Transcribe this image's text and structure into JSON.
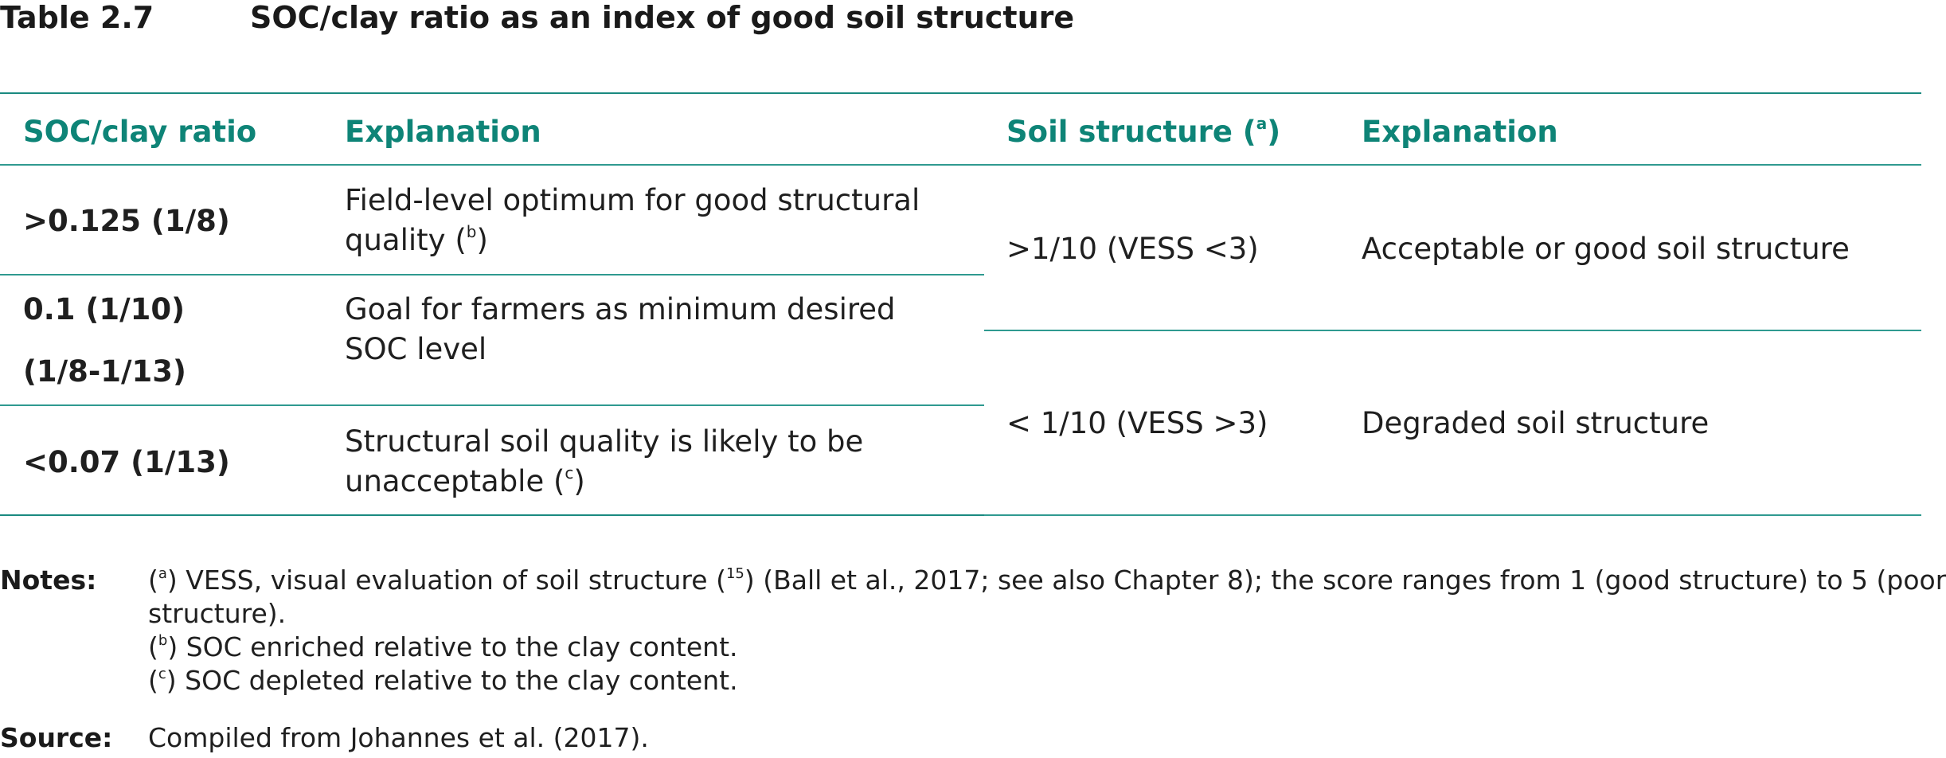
{
  "title": {
    "label": "Table 2.7",
    "text": "SOC/clay ratio as an index of good soil structure"
  },
  "headers": {
    "ratio": "SOC/clay ratio",
    "explanation_left": "Explanation",
    "structure": "Soil structure (",
    "structure_sup": "a",
    "structure_close": ")",
    "explanation_right": "Explanation"
  },
  "left_rows": [
    {
      "ratio": ">0.125 (1/8)",
      "explanation_line1": "Field-level optimum for good structural",
      "explanation_line2": "quality (",
      "sup": "b",
      "close": ")"
    },
    {
      "ratio_line1": "0.1 (1/10)",
      "ratio_line2": "(1/8-1/13)",
      "explanation_line1": "Goal for farmers as minimum desired",
      "explanation_line2": "SOC level"
    },
    {
      "ratio": "<0.07 (1/13)",
      "explanation_line1": "Structural soil quality is likely to be",
      "explanation_line2": "unacceptable (",
      "sup": "c",
      "close": ")"
    }
  ],
  "right_rows": [
    {
      "structure": ">1/10 (VESS <3)",
      "explanation": "Acceptable or good soil structure"
    },
    {
      "structure": "< 1/10 (VESS >3)",
      "explanation": "Degraded soil structure"
    }
  ],
  "notes": {
    "label": "Notes:",
    "a_open": "(",
    "a_sup": "a",
    "a_text1": ") VESS, visual evaluation of soil structure (",
    "a_ref": "15",
    "a_text2": ") (Ball et al., 2017; see also Chapter 8); the score ranges from 1 (good structure) to 5 (poor",
    "a_text3": "structure).",
    "b_open": "(",
    "b_sup": "b",
    "b_text": ") SOC enriched relative to the clay content.",
    "c_open": "(",
    "c_sup": "c",
    "c_text": ") SOC depleted relative to the clay content."
  },
  "source": {
    "label": "Source:",
    "text": "Compiled from Johannes et al. (2017)."
  }
}
